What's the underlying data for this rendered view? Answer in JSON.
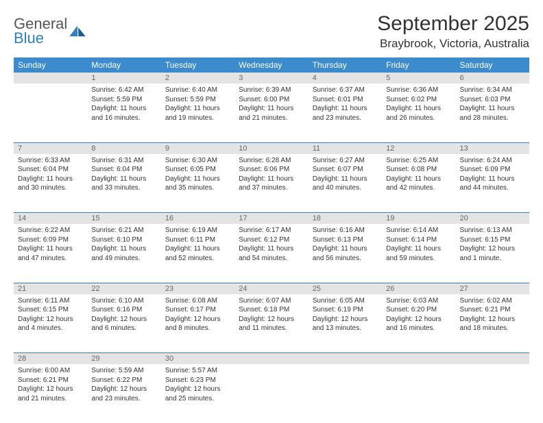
{
  "logo": {
    "word1": "General",
    "word2": "Blue"
  },
  "title": "September 2025",
  "location": "Braybrook, Victoria, Australia",
  "colors": {
    "header_bg": "#3b8bcd",
    "header_text": "#ffffff",
    "daynum_bg": "#e4e4e4",
    "daynum_text": "#666666",
    "cell_text": "#333333",
    "row_border": "#2f7fc2",
    "logo_blue": "#2f7fc2",
    "logo_gray": "#555555",
    "page_bg": "#ffffff"
  },
  "fonts": {
    "title_size_pt": 22,
    "location_size_pt": 13,
    "header_size_pt": 9,
    "cell_size_pt": 7.5
  },
  "weekdays": [
    "Sunday",
    "Monday",
    "Tuesday",
    "Wednesday",
    "Thursday",
    "Friday",
    "Saturday"
  ],
  "weeks": [
    {
      "nums": [
        "",
        "1",
        "2",
        "3",
        "4",
        "5",
        "6"
      ],
      "cells": [
        {
          "lines": []
        },
        {
          "lines": [
            "Sunrise: 6:42 AM",
            "Sunset: 5:59 PM",
            "Daylight: 11 hours",
            "and 16 minutes."
          ]
        },
        {
          "lines": [
            "Sunrise: 6:40 AM",
            "Sunset: 5:59 PM",
            "Daylight: 11 hours",
            "and 19 minutes."
          ]
        },
        {
          "lines": [
            "Sunrise: 6:39 AM",
            "Sunset: 6:00 PM",
            "Daylight: 11 hours",
            "and 21 minutes."
          ]
        },
        {
          "lines": [
            "Sunrise: 6:37 AM",
            "Sunset: 6:01 PM",
            "Daylight: 11 hours",
            "and 23 minutes."
          ]
        },
        {
          "lines": [
            "Sunrise: 6:36 AM",
            "Sunset: 6:02 PM",
            "Daylight: 11 hours",
            "and 26 minutes."
          ]
        },
        {
          "lines": [
            "Sunrise: 6:34 AM",
            "Sunset: 6:03 PM",
            "Daylight: 11 hours",
            "and 28 minutes."
          ]
        }
      ]
    },
    {
      "nums": [
        "7",
        "8",
        "9",
        "10",
        "11",
        "12",
        "13"
      ],
      "cells": [
        {
          "lines": [
            "Sunrise: 6:33 AM",
            "Sunset: 6:04 PM",
            "Daylight: 11 hours",
            "and 30 minutes."
          ]
        },
        {
          "lines": [
            "Sunrise: 6:31 AM",
            "Sunset: 6:04 PM",
            "Daylight: 11 hours",
            "and 33 minutes."
          ]
        },
        {
          "lines": [
            "Sunrise: 6:30 AM",
            "Sunset: 6:05 PM",
            "Daylight: 11 hours",
            "and 35 minutes."
          ]
        },
        {
          "lines": [
            "Sunrise: 6:28 AM",
            "Sunset: 6:06 PM",
            "Daylight: 11 hours",
            "and 37 minutes."
          ]
        },
        {
          "lines": [
            "Sunrise: 6:27 AM",
            "Sunset: 6:07 PM",
            "Daylight: 11 hours",
            "and 40 minutes."
          ]
        },
        {
          "lines": [
            "Sunrise: 6:25 AM",
            "Sunset: 6:08 PM",
            "Daylight: 11 hours",
            "and 42 minutes."
          ]
        },
        {
          "lines": [
            "Sunrise: 6:24 AM",
            "Sunset: 6:09 PM",
            "Daylight: 11 hours",
            "and 44 minutes."
          ]
        }
      ]
    },
    {
      "nums": [
        "14",
        "15",
        "16",
        "17",
        "18",
        "19",
        "20"
      ],
      "cells": [
        {
          "lines": [
            "Sunrise: 6:22 AM",
            "Sunset: 6:09 PM",
            "Daylight: 11 hours",
            "and 47 minutes."
          ]
        },
        {
          "lines": [
            "Sunrise: 6:21 AM",
            "Sunset: 6:10 PM",
            "Daylight: 11 hours",
            "and 49 minutes."
          ]
        },
        {
          "lines": [
            "Sunrise: 6:19 AM",
            "Sunset: 6:11 PM",
            "Daylight: 11 hours",
            "and 52 minutes."
          ]
        },
        {
          "lines": [
            "Sunrise: 6:17 AM",
            "Sunset: 6:12 PM",
            "Daylight: 11 hours",
            "and 54 minutes."
          ]
        },
        {
          "lines": [
            "Sunrise: 6:16 AM",
            "Sunset: 6:13 PM",
            "Daylight: 11 hours",
            "and 56 minutes."
          ]
        },
        {
          "lines": [
            "Sunrise: 6:14 AM",
            "Sunset: 6:14 PM",
            "Daylight: 11 hours",
            "and 59 minutes."
          ]
        },
        {
          "lines": [
            "Sunrise: 6:13 AM",
            "Sunset: 6:15 PM",
            "Daylight: 12 hours",
            "and 1 minute."
          ]
        }
      ]
    },
    {
      "nums": [
        "21",
        "22",
        "23",
        "24",
        "25",
        "26",
        "27"
      ],
      "cells": [
        {
          "lines": [
            "Sunrise: 6:11 AM",
            "Sunset: 6:15 PM",
            "Daylight: 12 hours",
            "and 4 minutes."
          ]
        },
        {
          "lines": [
            "Sunrise: 6:10 AM",
            "Sunset: 6:16 PM",
            "Daylight: 12 hours",
            "and 6 minutes."
          ]
        },
        {
          "lines": [
            "Sunrise: 6:08 AM",
            "Sunset: 6:17 PM",
            "Daylight: 12 hours",
            "and 8 minutes."
          ]
        },
        {
          "lines": [
            "Sunrise: 6:07 AM",
            "Sunset: 6:18 PM",
            "Daylight: 12 hours",
            "and 11 minutes."
          ]
        },
        {
          "lines": [
            "Sunrise: 6:05 AM",
            "Sunset: 6:19 PM",
            "Daylight: 12 hours",
            "and 13 minutes."
          ]
        },
        {
          "lines": [
            "Sunrise: 6:03 AM",
            "Sunset: 6:20 PM",
            "Daylight: 12 hours",
            "and 16 minutes."
          ]
        },
        {
          "lines": [
            "Sunrise: 6:02 AM",
            "Sunset: 6:21 PM",
            "Daylight: 12 hours",
            "and 18 minutes."
          ]
        }
      ]
    },
    {
      "nums": [
        "28",
        "29",
        "30",
        "",
        "",
        "",
        ""
      ],
      "cells": [
        {
          "lines": [
            "Sunrise: 6:00 AM",
            "Sunset: 6:21 PM",
            "Daylight: 12 hours",
            "and 21 minutes."
          ]
        },
        {
          "lines": [
            "Sunrise: 5:59 AM",
            "Sunset: 6:22 PM",
            "Daylight: 12 hours",
            "and 23 minutes."
          ]
        },
        {
          "lines": [
            "Sunrise: 5:57 AM",
            "Sunset: 6:23 PM",
            "Daylight: 12 hours",
            "and 25 minutes."
          ]
        },
        {
          "lines": []
        },
        {
          "lines": []
        },
        {
          "lines": []
        },
        {
          "lines": []
        }
      ]
    }
  ]
}
